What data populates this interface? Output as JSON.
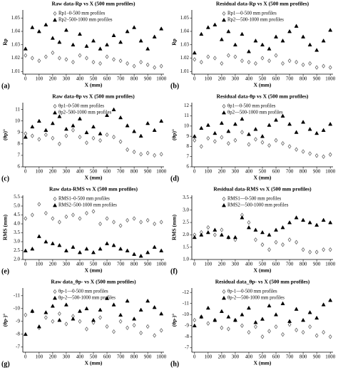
{
  "chart_data": [
    {
      "type": "scatter",
      "label": "(a)",
      "title": "Raw data-Rp vs X (500 mm profiles)",
      "y_label": "Rp",
      "x_label": "X (mm)",
      "x": [
        0,
        50,
        100,
        150,
        200,
        250,
        300,
        350,
        400,
        450,
        500,
        550,
        600,
        650,
        700,
        750,
        800,
        850,
        900,
        950,
        1000
      ],
      "xlim": [
        -20,
        1020
      ],
      "xticks": [
        0,
        100,
        200,
        300,
        400,
        500,
        600,
        700,
        800,
        900,
        1000
      ],
      "ylim": [
        1.008,
        1.056
      ],
      "yticks": [
        1.01,
        1.02,
        1.03,
        1.04,
        1.05
      ],
      "series": [
        {
          "name": "Rp1–0-500 mm profiles",
          "color": "#555555",
          "marker": "diamond",
          "values": [
            1.022,
            1.02,
            1.018,
            1.021,
            1.024,
            1.02,
            1.019,
            1.017,
            1.022,
            1.02,
            1.017,
            1.016,
            1.021,
            1.019,
            1.018,
            1.016,
            1.014,
            1.017,
            1.015,
            1.013,
            1.014
          ]
        },
        {
          "name": "Rp2–500-1000 mm profiles",
          "color": "#000000",
          "marker": "triangle",
          "values": [
            1.027,
            1.043,
            1.04,
            1.045,
            1.035,
            1.032,
            1.041,
            1.03,
            1.038,
            1.029,
            1.033,
            1.027,
            1.03,
            1.037,
            1.032,
            1.04,
            1.043,
            1.033,
            1.027,
            1.036,
            1.042
          ]
        }
      ]
    },
    {
      "type": "scatter",
      "label": "(b)",
      "title": "Residual data-Rp vs X (500 mm profiles)",
      "y_label": "Rp",
      "x_label": "X (mm)",
      "x": [
        0,
        50,
        100,
        150,
        200,
        250,
        300,
        350,
        400,
        450,
        500,
        550,
        600,
        650,
        700,
        750,
        800,
        850,
        900,
        950,
        1000
      ],
      "xlim": [
        -20,
        1020
      ],
      "xticks": [
        0,
        100,
        200,
        300,
        400,
        500,
        600,
        700,
        800,
        900,
        1000
      ],
      "ylim": [
        1.008,
        1.056
      ],
      "yticks": [
        1.01,
        1.02,
        1.03,
        1.04,
        1.05
      ],
      "series": [
        {
          "name": "Rp1—0-500 mm profiles",
          "color": "#555555",
          "marker": "diamond",
          "values": [
            1.019,
            1.017,
            1.021,
            1.02,
            1.016,
            1.022,
            1.021,
            1.018,
            1.017,
            1.016,
            1.02,
            1.018,
            1.022,
            1.016,
            1.018,
            1.017,
            1.015,
            1.016,
            1.013,
            1.014,
            1.013
          ]
        },
        {
          "name": "Rp2—500-1000 mm profiles",
          "color": "#000000",
          "marker": "triangle",
          "values": [
            1.024,
            1.038,
            1.043,
            1.045,
            1.034,
            1.04,
            1.03,
            1.038,
            1.025,
            1.033,
            1.03,
            1.027,
            1.036,
            1.033,
            1.04,
            1.044,
            1.036,
            1.03,
            1.026,
            1.033,
            1.041
          ]
        }
      ]
    },
    {
      "type": "scatter",
      "label": "(c)",
      "title": "Raw data-θp vs X (500 mm profiles)",
      "y_label": "(θp)°",
      "x_label": "X (mm)",
      "x": [
        0,
        50,
        100,
        150,
        200,
        250,
        300,
        350,
        400,
        450,
        500,
        550,
        600,
        650,
        700,
        750,
        800,
        850,
        900,
        950,
        1000
      ],
      "xlim": [
        -20,
        1020
      ],
      "xticks": [
        0,
        100,
        200,
        300,
        400,
        500,
        600,
        700,
        800,
        900,
        1000
      ],
      "ylim": [
        6,
        11.6
      ],
      "yticks": [
        6,
        7,
        8,
        9,
        10,
        11
      ],
      "series": [
        {
          "name": "θp1–0-500 mm profiles",
          "color": "#555555",
          "marker": "diamond",
          "values": [
            8.9,
            8.7,
            8.4,
            8.8,
            8.5,
            8.0,
            8.7,
            9.2,
            8.6,
            8.1,
            8.5,
            8.3,
            8.8,
            8.6,
            8.2,
            7.5,
            7.3,
            7.1,
            7.2,
            7.0,
            7.1
          ]
        },
        {
          "name": "θp2–500-1000 mm profiles",
          "color": "#000000",
          "marker": "triangle",
          "values": [
            8.6,
            9.5,
            10.0,
            9.2,
            9.8,
            10.4,
            9.3,
            9.6,
            10.2,
            9.0,
            9.5,
            8.9,
            10.5,
            11.0,
            10.3,
            9.6,
            9.1,
            8.7,
            9.8,
            9.2,
            10.0
          ]
        }
      ]
    },
    {
      "type": "scatter",
      "label": "(d)",
      "title": "Residual data-θp vs X (500 mm profiles)",
      "y_label": "(θp)°",
      "x_label": "X (mm)",
      "x": [
        0,
        50,
        100,
        150,
        200,
        250,
        300,
        350,
        400,
        450,
        500,
        550,
        600,
        650,
        700,
        750,
        800,
        850,
        900,
        950,
        1000
      ],
      "xlim": [
        -20,
        1020
      ],
      "xticks": [
        0,
        100,
        200,
        300,
        400,
        500,
        600,
        700,
        800,
        900,
        1000
      ],
      "ylim": [
        6,
        12.3
      ],
      "yticks": [
        6,
        7,
        8,
        9,
        10,
        11,
        12
      ],
      "series": [
        {
          "name": "θp1—0-500 mm profiles",
          "color": "#555555",
          "marker": "diamond",
          "values": [
            8.6,
            8.0,
            8.8,
            8.5,
            8.9,
            8.3,
            8.6,
            9.4,
            8.2,
            8.7,
            8.4,
            8.1,
            8.6,
            8.3,
            8.0,
            7.7,
            7.5,
            7.3,
            7.1,
            7.0,
            7.2
          ]
        },
        {
          "name": "θp2—500-1000 mm profiles",
          "color": "#000000",
          "marker": "triangle",
          "values": [
            9.0,
            9.8,
            10.1,
            9.3,
            10.3,
            9.5,
            10.2,
            10.7,
            9.2,
            9.7,
            9.0,
            10.1,
            10.6,
            11.0,
            10.2,
            9.4,
            10.4,
            9.7,
            9.3,
            9.6,
            10.2
          ]
        }
      ]
    },
    {
      "type": "scatter",
      "label": "(e)",
      "title": "Raw data-RMS vs X (500 mm profiles)",
      "y_label": "RMS (mm)",
      "x_label": "X (mm)",
      "x": [
        0,
        50,
        100,
        150,
        200,
        250,
        300,
        350,
        400,
        450,
        500,
        550,
        600,
        650,
        700,
        750,
        800,
        850,
        900,
        950,
        1000
      ],
      "xlim": [
        -20,
        1020
      ],
      "xticks": [
        0,
        100,
        200,
        300,
        400,
        500,
        600,
        700,
        800,
        900,
        1000
      ],
      "ylim": [
        2,
        5.6
      ],
      "yticks": [
        {
          "value": 2,
          "label": "2.0"
        },
        2.5,
        {
          "value": 3,
          "label": "3.0"
        },
        3.5,
        {
          "value": 4,
          "label": "4.0"
        },
        4.5,
        {
          "value": 5,
          "label": "5.0"
        },
        5.5
      ],
      "series": [
        {
          "name": "RMS1–0-500 mm profiles",
          "color": "#555555",
          "marker": "diamond",
          "values": [
            4.3,
            4.5,
            5.1,
            4.6,
            4.3,
            4.1,
            4.4,
            4.5,
            4.3,
            4.6,
            4.7,
            4.0,
            4.3,
            4.1,
            3.9,
            4.2,
            4.3,
            4.1,
            4.2,
            4.0,
            4.1
          ]
        },
        {
          "name": "RMS2–500-1000 mm profiles",
          "color": "#000000",
          "marker": "triangle",
          "values": [
            2.5,
            2.6,
            3.3,
            3.0,
            2.9,
            2.8,
            2.5,
            2.7,
            2.4,
            2.6,
            2.4,
            2.6,
            2.9,
            2.8,
            2.6,
            2.5,
            2.3,
            2.2,
            2.4,
            2.7,
            2.5
          ]
        }
      ]
    },
    {
      "type": "scatter",
      "label": "(f)",
      "title": "Residual data-RMS vs X (500 mm profiles)",
      "y_label": "RMS (mm)",
      "x_label": "X (mm)",
      "x": [
        0,
        50,
        100,
        150,
        200,
        250,
        300,
        350,
        400,
        450,
        500,
        550,
        600,
        650,
        700,
        750,
        800,
        850,
        900,
        950,
        1000
      ],
      "xlim": [
        -20,
        1020
      ],
      "xticks": [
        0,
        100,
        200,
        300,
        400,
        500,
        600,
        700,
        800,
        900,
        1000
      ],
      "ylim": [
        1,
        3.6
      ],
      "yticks": [
        {
          "value": 1,
          "label": "1.0"
        },
        1.5,
        {
          "value": 2,
          "label": "2.0"
        },
        2.5,
        {
          "value": 3,
          "label": "3.0"
        },
        3.5
      ],
      "series": [
        {
          "name": "RMS1—0-500 mm profiles",
          "color": "#555555",
          "marker": "diamond",
          "values": [
            2.0,
            2.1,
            2.3,
            2.0,
            2.2,
            1.9,
            1.8,
            2.8,
            2.5,
            1.8,
            1.6,
            1.4,
            1.7,
            1.6,
            1.8,
            1.7,
            1.4,
            1.3,
            1.3,
            1.4,
            1.4
          ]
        },
        {
          "name": "RMS2—500-1000 mm profiles",
          "color": "#000000",
          "marker": "triangle",
          "values": [
            1.9,
            2.0,
            2.1,
            2.2,
            2.0,
            1.9,
            1.9,
            2.7,
            2.3,
            2.2,
            2.1,
            2.0,
            2.2,
            2.3,
            2.5,
            2.7,
            2.6,
            2.5,
            2.4,
            2.6,
            2.5
          ]
        }
      ]
    },
    {
      "type": "scatter",
      "label": "(g)",
      "title": "Raw data_θp- vs X (500 mm profiles)",
      "y_label": "(θp-)°",
      "x_label": "X (mm)",
      "x": [
        0,
        50,
        100,
        150,
        200,
        250,
        300,
        350,
        400,
        450,
        500,
        550,
        600,
        650,
        700,
        750,
        800,
        850,
        900,
        950,
        1000
      ],
      "xlim": [
        -20,
        1020
      ],
      "xticks": [
        0,
        100,
        200,
        300,
        400,
        500,
        600,
        700,
        800,
        900,
        1000
      ],
      "ylim": [
        -6.6,
        -11.6
      ],
      "yticks": [
        -7,
        -8,
        -9,
        -10,
        -11
      ],
      "series": [
        {
          "name": "θp-1—0-500 mm profiles",
          "color": "#555555",
          "marker": "diamond",
          "values": [
            -9.5,
            -9.8,
            -8.5,
            -9.3,
            -9.0,
            -9.6,
            -8.8,
            -9.4,
            -9.0,
            -8.4,
            -8.9,
            -9.3,
            -8.6,
            -8.2,
            -9.0,
            -8.5,
            -8.7,
            -8.1,
            -8.6,
            -7.9,
            -8.3
          ]
        },
        {
          "name": "θp-2—500-1000 mm profiles",
          "color": "#000000",
          "marker": "triangle",
          "values": [
            -8.0,
            -9.8,
            -8.6,
            -9.7,
            -10.2,
            -9.1,
            -10.3,
            -9.2,
            -9.8,
            -10.0,
            -9.1,
            -9.9,
            -10.8,
            -10.3,
            -9.5,
            -10.6,
            -9.2,
            -9.9,
            -10.6,
            -10.1,
            -9.6
          ]
        }
      ]
    },
    {
      "type": "scatter",
      "label": "(h)",
      "title": "Residual data_θp- vs X (500 mm profiles)",
      "y_label": "(θp-)°",
      "x_label": "X (mm)",
      "x": [
        0,
        50,
        100,
        150,
        200,
        250,
        300,
        350,
        400,
        450,
        500,
        550,
        600,
        650,
        700,
        750,
        800,
        850,
        900,
        950,
        1000
      ],
      "xlim": [
        -20,
        1020
      ],
      "xticks": [
        0,
        100,
        200,
        300,
        400,
        500,
        600,
        700,
        800,
        900,
        1000
      ],
      "ylim": [
        -6.6,
        -12.4
      ],
      "yticks": [
        -7,
        -8,
        -9,
        -10,
        -11,
        -12
      ],
      "series": [
        {
          "name": "θp-1—0-500 mm profiles",
          "color": "#555555",
          "marker": "diamond",
          "values": [
            -9.5,
            -9.8,
            -9.2,
            -9.5,
            -8.8,
            -8.7,
            -9.5,
            -9.0,
            -8.4,
            -8.9,
            -8.0,
            -8.5,
            -8.9,
            -8.2,
            -9.1,
            -8.6,
            -8.4,
            -8.9,
            -8.1,
            -8.4,
            -8.0
          ]
        },
        {
          "name": "θp-2—500-1000 mm profiles",
          "color": "#000000",
          "marker": "triangle",
          "values": [
            -9.0,
            -9.8,
            -10.6,
            -9.5,
            -10.3,
            -9.8,
            -9.5,
            -10.0,
            -10.6,
            -9.3,
            -9.6,
            -10.8,
            -10.0,
            -11.0,
            -9.4,
            -10.5,
            -9.5,
            -10.2,
            -9.7,
            -10.9,
            -11.3
          ]
        }
      ]
    }
  ]
}
